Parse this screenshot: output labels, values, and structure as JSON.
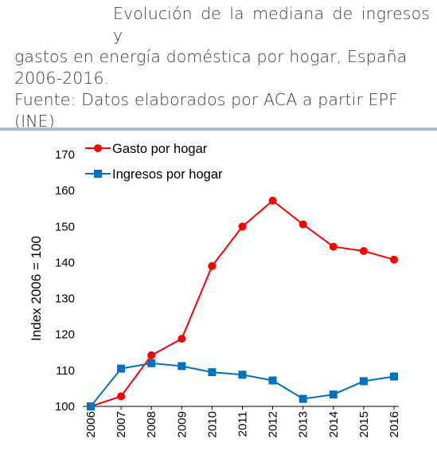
{
  "caption": {
    "title_line1": "Evolución de la mediana de ingresos y",
    "title_line2": "gastos en energía doméstica por hogar, España",
    "title_line3": "2006-2016.",
    "source_line1": "Fuente: Datos elaborados por ACA a partir EPF",
    "source_line2": "(INE)"
  },
  "chart_data": {
    "type": "line",
    "x": [
      "2006",
      "2007",
      "2008",
      "2009",
      "2010",
      "2011",
      "2012",
      "2013",
      "2014",
      "2015",
      "2016"
    ],
    "series": [
      {
        "name": "Gasto por hogar",
        "color": "#ff0000",
        "marker": "circle",
        "values": [
          100,
          102.8,
          114.2,
          118.8,
          139,
          150,
          157.2,
          150.6,
          144.4,
          143.2,
          140.8
        ]
      },
      {
        "name": "Ingresos por hogar",
        "color": "#0070c0",
        "marker": "square",
        "values": [
          100,
          110.5,
          112,
          111.2,
          109.5,
          108.8,
          107.2,
          102.1,
          103.3,
          107,
          108.3
        ]
      }
    ],
    "ylabel": "Index 2006 = 100",
    "xlabel": "",
    "ylim": [
      100,
      170
    ],
    "yticks": [
      100,
      110,
      120,
      130,
      140,
      150,
      160,
      170
    ],
    "grid": false,
    "legend_position": "top-left"
  }
}
